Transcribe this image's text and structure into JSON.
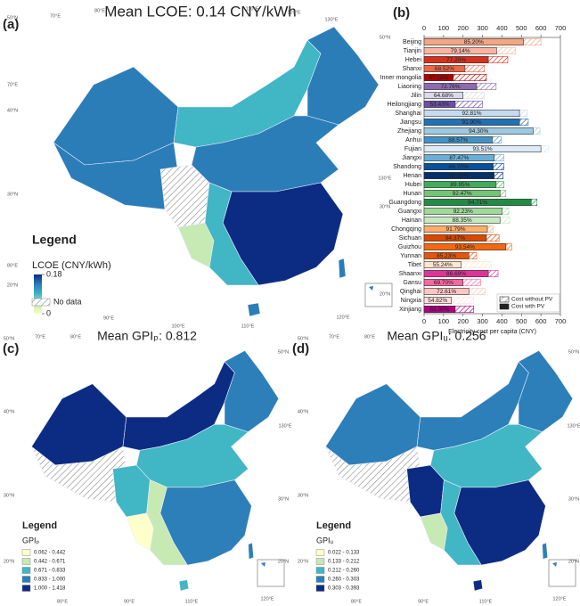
{
  "chart_data": [
    {
      "type": "map",
      "panel_label": "(a)",
      "title": "Mean LCOE: 0.14 CNY/kWh",
      "legend_title": "Legend",
      "colorbar_title": "LCOE (CNY/kWh)",
      "colorbar_lim": [
        0,
        0.18
      ],
      "colorbar_ticks": [
        0,
        0.18
      ],
      "colors": [
        "#f7fcc4",
        "#c7e9b4",
        "#41b6c4",
        "#2b7db8",
        "#0c2c84"
      ],
      "no_data_label": "No data",
      "grid_labels": [
        "50°N",
        "70°E",
        "80°E",
        "110°E",
        "120°E",
        "130°E",
        "50°N",
        "70°E",
        "40°N",
        "30°N",
        "80°E",
        "20°N",
        "130°E",
        "30°N",
        "20°N",
        "90°E",
        "100°E",
        "110°E",
        "120°E"
      ]
    },
    {
      "type": "bar",
      "panel_label": "(b)",
      "orientation": "horizontal",
      "categories": [
        "Beijing",
        "Tianjin",
        "Hebei",
        "Shanxi",
        "Inner mongolia",
        "Liaoning",
        "Jilin",
        "Heilongjiang",
        "Shanghai",
        "Jiangsu",
        "Zhejiang",
        "Anhui",
        "Fujian",
        "Jiangxi",
        "Shandong",
        "Henan",
        "Hubei",
        "Hunan",
        "Guangdong",
        "Guangxi",
        "Hainan",
        "Chongqing",
        "Sichuan",
        "Guizhou",
        "Yunnan",
        "Tibet",
        "Shaanxi",
        "Gansu",
        "Qinghai",
        "Ningxia",
        "Xinjiang"
      ],
      "series": [
        {
          "name": "Cost without PV",
          "color": "#222222",
          "pattern": "hatch",
          "values": [
            600,
            470,
            430,
            310,
            320,
            370,
            310,
            300,
            530,
            535,
            595,
            395,
            640,
            410,
            410,
            405,
            410,
            420,
            580,
            435,
            440,
            355,
            385,
            450,
            270,
            345,
            380,
            290,
            315,
            255,
            255
          ]
        },
        {
          "name": "Cost with PV",
          "color": "#222222",
          "values": [
            510,
            372,
            330,
            210,
            150,
            270,
            200,
            160,
            490,
            490,
            560,
            350,
            600,
            360,
            355,
            360,
            370,
            390,
            550,
            400,
            390,
            325,
            320,
            420,
            230,
            190,
            330,
            200,
            230,
            140,
            160
          ]
        }
      ],
      "bar_colors": [
        "#f4a582",
        "#fbb4a0",
        "#d7301f",
        "#ef6548",
        "#b30000",
        "#8c6bb1",
        "#dadaeb",
        "#6a51a3",
        "#c6dbef",
        "#2171b5",
        "#9ecae1",
        "#4292c6",
        "#deebf7",
        "#6baed6",
        "#08519c",
        "#08306b",
        "#41ab5d",
        "#74c476",
        "#238b45",
        "#a1d99b",
        "#c7e9c0",
        "#fdae6b",
        "#d94801",
        "#f16913",
        "#e6550d",
        "#fee6ce",
        "#dd3497",
        "#f768a1",
        "#fcc5c0",
        "#fde0dd",
        "#ae017e"
      ],
      "ratio_labels": [
        "85.20%",
        "79.14%",
        "77.20%",
        "68.52%",
        "47.10%",
        "72.76%",
        "64.68%",
        "53.43%",
        "92.81%",
        "91.90%",
        "94.30%",
        "88.57%",
        "93.51%",
        "87.47%",
        "86.70%",
        "88.90%",
        "89.95%",
        "92.47%",
        "94.71%",
        "92.23%",
        "88.35%",
        "91.79%",
        "84.37%",
        "93.54%",
        "85.23%",
        "55.24%",
        "86.69%",
        "69.70%",
        "72.61%",
        "54.82%",
        "61.30%"
      ],
      "xlabel": "Electricity cost per capita (CNY)",
      "xlim": [
        0,
        700
      ],
      "xticks": [
        0,
        100,
        200,
        300,
        400,
        500,
        600,
        700
      ]
    },
    {
      "type": "map",
      "panel_label": "(c)",
      "title": "Mean GPIₚ: 0.812",
      "legend_title": "Legend",
      "class_title": "GPIₚ",
      "classes": [
        "0.062 - 0.442",
        "0.442 - 0.671",
        "0.671 - 0.833",
        "0.833 - 1.000",
        "1.000 - 1.418"
      ],
      "colors": [
        "#ffffcc",
        "#c7e9b4",
        "#41b6c4",
        "#2c7fb8",
        "#0c2c84"
      ],
      "grid_labels": [
        "50°N",
        "70°E",
        "80°E",
        "50°N",
        "40°N",
        "30°N",
        "20°N",
        "130°E",
        "30°N",
        "20°N",
        "80°E",
        "90°E",
        "110°E",
        "120°E"
      ]
    },
    {
      "type": "map",
      "panel_label": "(d)",
      "title": "Mean GPIᵤ: 0.256",
      "legend_title": "Legend",
      "class_title": "GPIᵤ",
      "classes": [
        "0.022 - 0.133",
        "0.133 - 0.212",
        "0.212 - 0.260",
        "0.260 - 0.303",
        "0.303 - 0.393"
      ],
      "colors": [
        "#ffffcc",
        "#c7e9b4",
        "#41b6c4",
        "#2c7fb8",
        "#0c2c84"
      ],
      "grid_labels": [
        "50°N",
        "70°E",
        "80°E",
        "50°N",
        "40°N",
        "30°N",
        "20°N",
        "130°E",
        "30°N",
        "20°N",
        "80°E",
        "90°E",
        "110°E",
        "120°E"
      ]
    }
  ]
}
